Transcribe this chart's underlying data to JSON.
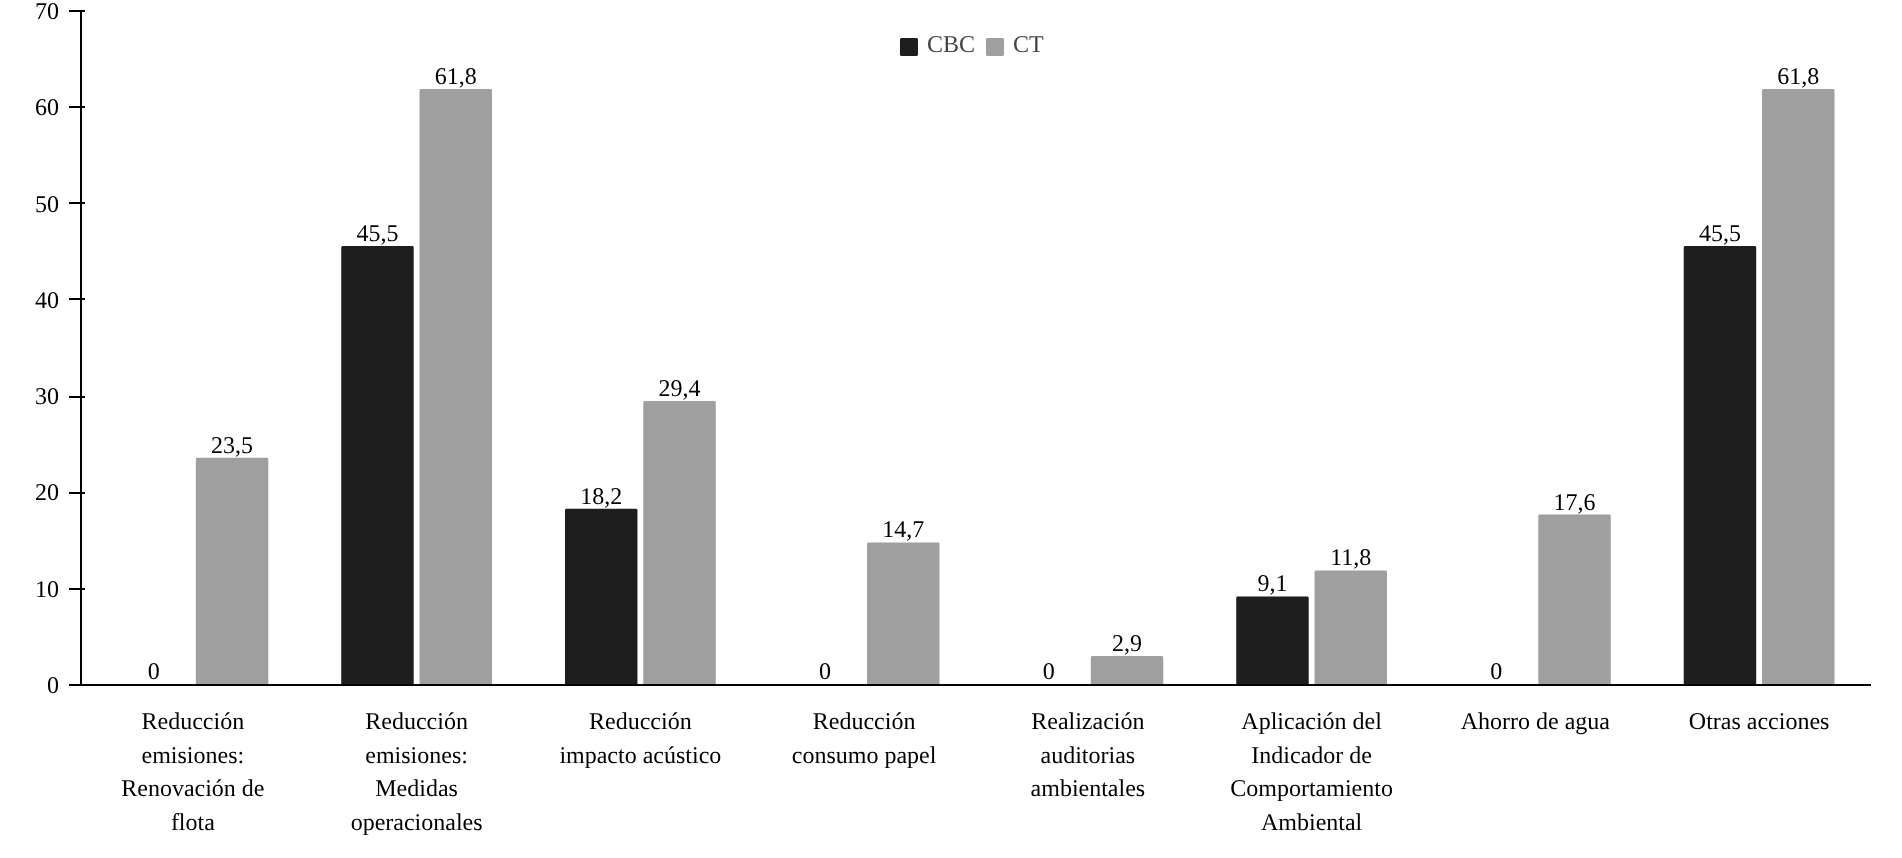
{
  "chart_data": {
    "type": "bar",
    "categories": [
      "Reducción emisiones: Renovación de flota",
      "Reducción emisiones: Medidas operacionales",
      "Reducción impacto acústico",
      "Reducción consumo papel",
      "Realización auditorias ambientales",
      "Aplicación del Indicador de Comportamiento Ambiental",
      "Ahorro de agua",
      "Otras acciones"
    ],
    "series": [
      {
        "name": "CBC",
        "color": "#1e1e1e",
        "values": [
          0,
          45.5,
          18.2,
          0,
          0,
          9.1,
          0,
          45.5
        ],
        "value_labels": [
          "0",
          "45,5",
          "18,2",
          "0",
          "0",
          "9,1",
          "0",
          "45,5"
        ]
      },
      {
        "name": "CT",
        "color": "#9f9f9f",
        "values": [
          23.5,
          61.8,
          29.4,
          14.7,
          2.9,
          11.8,
          17.6,
          61.8
        ],
        "value_labels": [
          "23,5",
          "61,8",
          "29,4",
          "14,7",
          "2,9",
          "11,8",
          "17,6",
          "61,8"
        ]
      }
    ],
    "ylim": [
      0,
      70
    ],
    "yticks": [
      0,
      10,
      20,
      30,
      40,
      50,
      60,
      70
    ],
    "grid": false,
    "legend": "top"
  }
}
